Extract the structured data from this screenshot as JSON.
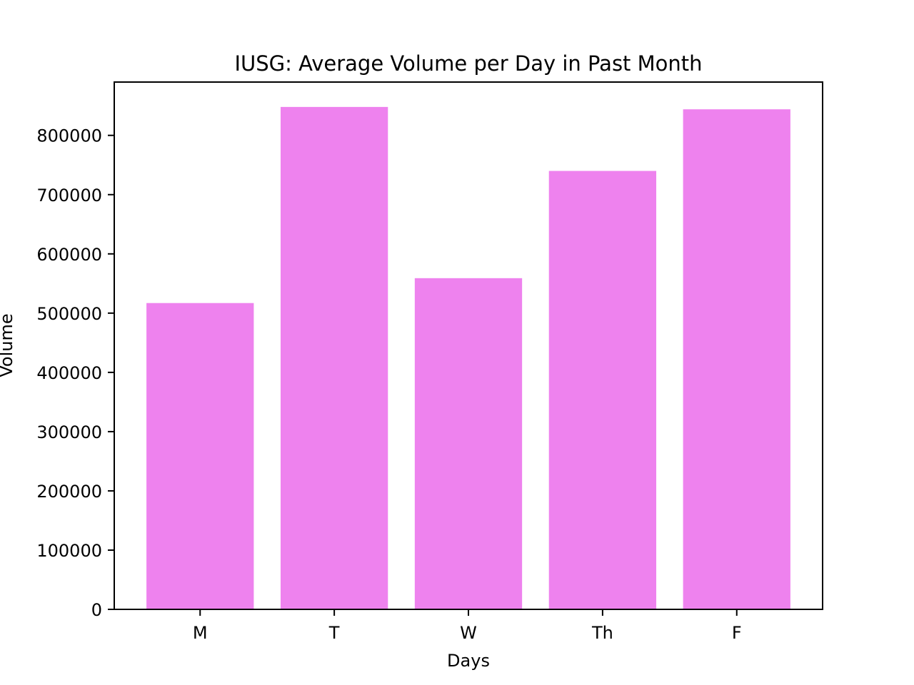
{
  "chart_data": {
    "type": "bar",
    "title": "IUSG: Average Volume per Day in Past Month",
    "xlabel": "Days",
    "ylabel": "Volume",
    "categories": [
      "M",
      "T",
      "W",
      "Th",
      "F"
    ],
    "values": [
      517000,
      848000,
      559000,
      740000,
      844000
    ],
    "ylim": [
      0,
      890000
    ],
    "yticks": [
      0,
      100000,
      200000,
      300000,
      400000,
      500000,
      600000,
      700000,
      800000
    ],
    "ytick_labels": [
      "0",
      "100000",
      "200000",
      "300000",
      "400000",
      "500000",
      "600000",
      "700000",
      "800000"
    ],
    "bar_color": "#ee82ee",
    "grid": false,
    "legend": "none"
  }
}
